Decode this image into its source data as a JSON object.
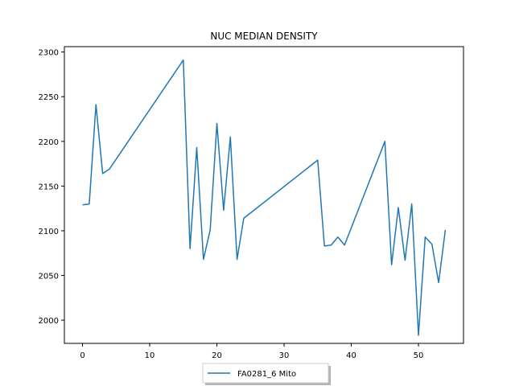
{
  "chart_data": {
    "type": "line",
    "title": "NUC MEDIAN DENSITY",
    "xlabel": "",
    "ylabel": "",
    "xlim": [
      -2.7,
      56.7
    ],
    "ylim": [
      1974,
      2306
    ],
    "xticks": [
      0,
      10,
      20,
      30,
      40,
      50
    ],
    "yticks": [
      2000,
      2050,
      2100,
      2150,
      2200,
      2250,
      2300
    ],
    "grid": false,
    "legend_position": "bottom-center",
    "series": [
      {
        "name": "FA0281_6 Mito",
        "color": "#1f77b4",
        "x": [
          0,
          1,
          2,
          3,
          4,
          15,
          16,
          17,
          18,
          19,
          20,
          21,
          22,
          23,
          24,
          35,
          36,
          37,
          38,
          39,
          45,
          46,
          47,
          48,
          49,
          50,
          51,
          52,
          53,
          54
        ],
        "y": [
          2129,
          2130,
          2241,
          2164,
          2169,
          2291,
          2080,
          2193,
          2068,
          2101,
          2220,
          2123,
          2205,
          2068,
          2114,
          2179,
          2083,
          2084,
          2093,
          2084,
          2200,
          2062,
          2126,
          2067,
          2130,
          1983,
          2093,
          2085,
          2042,
          2101
        ]
      }
    ]
  }
}
